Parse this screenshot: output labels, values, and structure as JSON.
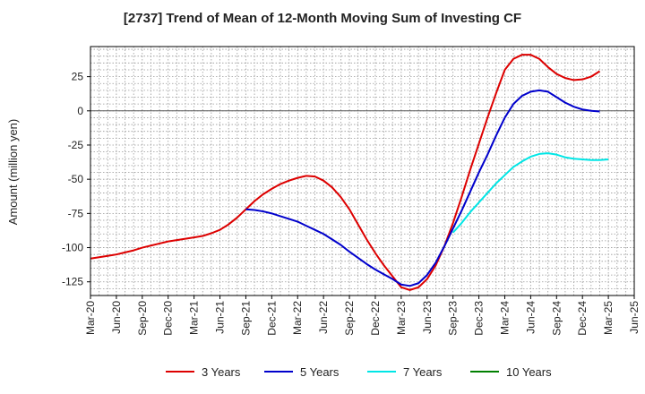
{
  "chart_data": {
    "type": "line",
    "title": "[2737]  Trend of Mean of 12-Month Moving Sum of Investing CF",
    "xlabel": "",
    "ylabel": "Amount (million yen)",
    "ylim": [
      -135,
      47
    ],
    "yticks": [
      25,
      0,
      -25,
      -50,
      -75,
      -100,
      -125
    ],
    "ytick_labels": [
      "25",
      "0",
      "-25",
      "-50",
      "-75",
      "-100",
      "-125"
    ],
    "xticks": [
      "Mar-20",
      "Jun-20",
      "Sep-20",
      "Dec-20",
      "Mar-21",
      "Jun-21",
      "Sep-21",
      "Dec-21",
      "Mar-22",
      "Jun-22",
      "Sep-22",
      "Dec-22",
      "Mar-23",
      "Jun-23",
      "Sep-23",
      "Dec-23",
      "Mar-24",
      "Jun-24",
      "Sep-24",
      "Dec-24",
      "Mar-25",
      "Jun-25"
    ],
    "x_start": "Mar-20",
    "grid": true,
    "legend_position": "bottom",
    "series": [
      {
        "name": "3 Years",
        "color": "#dd0000",
        "start_index": 0,
        "values": [
          -108,
          -107,
          -106,
          -105,
          -103.5,
          -102,
          -100,
          -98.5,
          -97,
          -95.5,
          -94.5,
          -93.5,
          -92.5,
          -91.5,
          -89.5,
          -87,
          -83,
          -78,
          -72,
          -66,
          -61,
          -57,
          -53.5,
          -51,
          -49,
          -47.5,
          -48,
          -51,
          -56,
          -63,
          -72,
          -83,
          -94,
          -104,
          -113,
          -121,
          -129,
          -131,
          -129,
          -123,
          -113,
          -99,
          -82,
          -63,
          -43,
          -24,
          -5,
          13,
          30,
          38,
          41,
          41,
          38,
          32,
          27,
          24,
          22.5,
          23,
          25,
          29
        ]
      },
      {
        "name": "5 Years",
        "color": "#0000cc",
        "start_index": 18,
        "values": [
          -72,
          -72.5,
          -73.5,
          -75,
          -77,
          -79,
          -81,
          -84,
          -87,
          -90,
          -94,
          -98,
          -103,
          -107.5,
          -112,
          -116,
          -119.5,
          -123,
          -127,
          -128,
          -126,
          -120,
          -111,
          -99,
          -86,
          -73,
          -59,
          -45,
          -32,
          -18,
          -5,
          5,
          11,
          14,
          15,
          14,
          10,
          6,
          3,
          1,
          0,
          -0.5
        ]
      },
      {
        "name": "7 Years",
        "color": "#00e6e6",
        "start_index": 42,
        "values": [
          -89,
          -82,
          -74,
          -67,
          -60,
          -53,
          -47,
          -41,
          -37,
          -33.5,
          -31.5,
          -31,
          -32,
          -34,
          -35,
          -35.5,
          -36,
          -36,
          -35.5
        ]
      },
      {
        "name": "10 Years",
        "color": "#008000",
        "start_index": 0,
        "values": []
      }
    ]
  }
}
